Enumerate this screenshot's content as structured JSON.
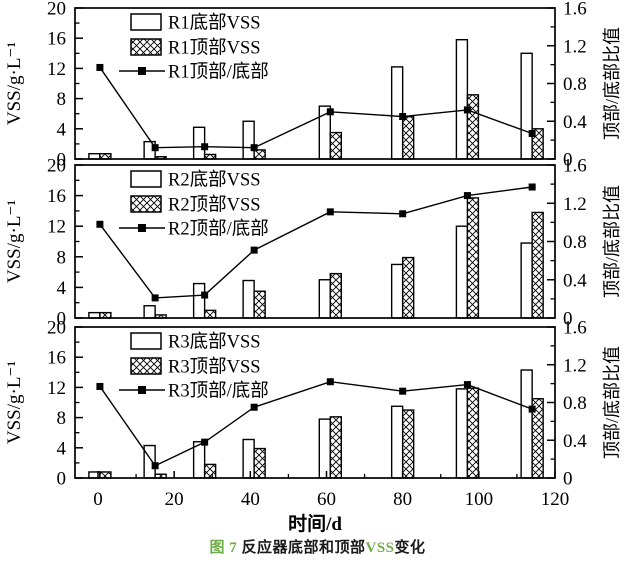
{
  "colors": {
    "ink": "#000000",
    "background": "#ffffff",
    "caption_accent": "#70ad47",
    "caption_dark": "#1a1a1a"
  },
  "axes": {
    "x": {
      "label": "时间/d",
      "tick_labels": [
        "0",
        "20",
        "40",
        "60",
        "80",
        "100",
        "120"
      ],
      "tick_values": [
        0,
        20,
        40,
        60,
        80,
        100,
        120
      ],
      "minor_tick_values": [
        10,
        30,
        50,
        70,
        90,
        110
      ],
      "range": [
        -6,
        120
      ]
    },
    "y_left": {
      "label": "VSS/g·L⁻¹",
      "tick_labels": [
        "0",
        "4",
        "8",
        "12",
        "16",
        "20"
      ],
      "tick_values": [
        0,
        4,
        8,
        12,
        16,
        20
      ],
      "minor_tick_values": [
        2,
        6,
        10,
        14,
        18
      ],
      "range": [
        0,
        20
      ]
    },
    "y_right": {
      "label": "顶部/底部比值",
      "tick_labels": [
        "0",
        "0.4",
        "0.8",
        "1.2",
        "1.6"
      ],
      "tick_values": [
        0,
        0.4,
        0.8,
        1.2,
        1.6
      ],
      "minor_tick_values": [
        0.2,
        0.6,
        1.0,
        1.4
      ],
      "range": [
        0,
        1.6
      ]
    }
  },
  "chart_data": [
    {
      "type": "bar",
      "panel": "R1",
      "x": [
        0.5,
        15,
        28,
        41,
        61,
        80,
        97,
        114
      ],
      "ylim_left": [
        0,
        20
      ],
      "ylim_right": [
        0,
        1.6
      ],
      "grid": false,
      "legend_position": "top-left-inside",
      "series": [
        {
          "name": "R1底部VSS",
          "type": "bar",
          "style": "open",
          "axis": "left",
          "values": [
            0.7,
            2.3,
            4.2,
            5.0,
            7.0,
            12.2,
            15.8,
            14.0
          ]
        },
        {
          "name": "R1顶部VSS",
          "type": "bar",
          "style": "crosshatch",
          "axis": "left",
          "values": [
            0.7,
            0.3,
            0.6,
            1.2,
            3.5,
            5.6,
            8.5,
            4.0
          ]
        },
        {
          "name": "R1顶部/底部",
          "type": "line",
          "marker": "filled-square",
          "axis": "right",
          "values": [
            0.97,
            0.12,
            0.13,
            0.12,
            0.5,
            0.45,
            0.52,
            0.27
          ]
        }
      ]
    },
    {
      "type": "bar",
      "panel": "R2",
      "x": [
        0.5,
        15,
        28,
        41,
        61,
        80,
        97,
        114
      ],
      "ylim_left": [
        0,
        20
      ],
      "ylim_right": [
        0,
        1.6
      ],
      "grid": false,
      "legend_position": "top-left-inside",
      "series": [
        {
          "name": "R2底部VSS",
          "type": "bar",
          "style": "open",
          "axis": "left",
          "values": [
            0.7,
            1.6,
            4.5,
            4.9,
            5.0,
            7.0,
            12.0,
            9.8
          ]
        },
        {
          "name": "R2顶部VSS",
          "type": "bar",
          "style": "crosshatch",
          "axis": "left",
          "values": [
            0.7,
            0.4,
            1.0,
            3.5,
            5.8,
            7.9,
            15.7,
            13.8
          ]
        },
        {
          "name": "R2顶部/底部",
          "type": "line",
          "marker": "filled-square",
          "axis": "right",
          "values": [
            0.98,
            0.21,
            0.24,
            0.71,
            1.11,
            1.09,
            1.28,
            1.37
          ]
        }
      ]
    },
    {
      "type": "bar",
      "panel": "R3",
      "x": [
        0.5,
        15,
        28,
        41,
        61,
        80,
        97,
        114
      ],
      "ylim_left": [
        0,
        20
      ],
      "ylim_right": [
        0,
        1.6
      ],
      "grid": false,
      "legend_position": "top-left-inside",
      "series": [
        {
          "name": "R3底部VSS",
          "type": "bar",
          "style": "open",
          "axis": "left",
          "values": [
            0.8,
            4.3,
            4.8,
            5.1,
            7.8,
            9.5,
            11.8,
            14.3
          ]
        },
        {
          "name": "R3顶部VSS",
          "type": "bar",
          "style": "crosshatch",
          "axis": "left",
          "values": [
            0.8,
            0.5,
            1.8,
            3.9,
            8.1,
            9.0,
            11.9,
            10.5
          ]
        },
        {
          "name": "R3顶部/底部",
          "type": "line",
          "marker": "filled-square",
          "axis": "right",
          "values": [
            0.97,
            0.13,
            0.38,
            0.75,
            1.02,
            0.92,
            0.99,
            0.73
          ]
        }
      ]
    }
  ],
  "caption": {
    "figure_no": "图 7",
    "title_part1": "反应器底部和顶部",
    "title_vss": "VSS",
    "title_part2": "变化"
  }
}
